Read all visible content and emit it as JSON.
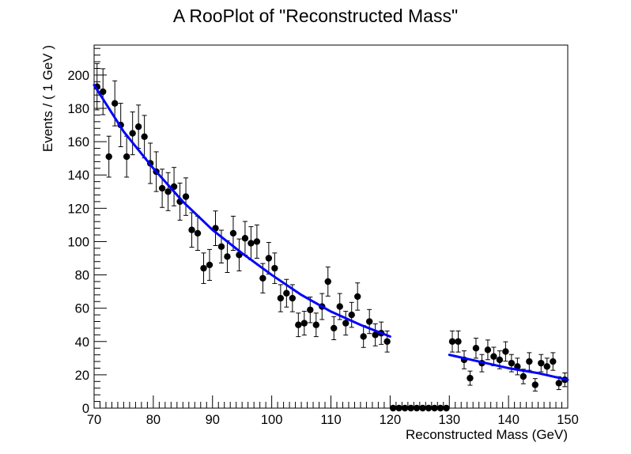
{
  "chart_data": {
    "type": "scatter",
    "title": "A RooPlot of \"Reconstructed Mass\"",
    "xlabel": "Reconstructed Mass (GeV)",
    "ylabel": "Events / ( 1 GeV )",
    "xlim": [
      70,
      150
    ],
    "ylim": [
      0,
      218
    ],
    "grid": false,
    "legend": "none",
    "x_ticks": [
      70,
      80,
      90,
      100,
      110,
      120,
      130,
      140,
      150
    ],
    "y_ticks": [
      0,
      20,
      40,
      60,
      80,
      100,
      120,
      140,
      160,
      180,
      200
    ],
    "marker_color": "#000000",
    "curve_color": "#0000ff",
    "series": [
      {
        "type": "scatter-errorbar",
        "x": [
          70.5,
          71.5,
          72.5,
          73.5,
          74.5,
          75.5,
          76.5,
          77.5,
          78.5,
          79.5,
          80.5,
          81.5,
          82.5,
          83.5,
          84.5,
          85.5,
          86.5,
          87.5,
          88.5,
          89.5,
          90.5,
          91.5,
          92.5,
          93.5,
          94.5,
          95.5,
          96.5,
          97.5,
          98.5,
          99.5,
          100.5,
          101.5,
          102.5,
          103.5,
          104.5,
          105.5,
          106.5,
          107.5,
          108.5,
          109.5,
          110.5,
          111.5,
          112.5,
          113.5,
          114.5,
          115.5,
          116.5,
          117.5,
          118.5,
          119.5,
          120.5,
          121.5,
          122.5,
          123.5,
          124.5,
          125.5,
          126.5,
          127.5,
          128.5,
          129.5,
          130.5,
          131.5,
          132.5,
          133.5,
          134.5,
          135.5,
          136.5,
          137.5,
          138.5,
          139.5,
          140.5,
          141.5,
          142.5,
          143.5,
          144.5,
          145.5,
          146.5,
          147.5,
          148.5,
          149.5
        ],
        "y": [
          193,
          190,
          151,
          183,
          170,
          151,
          165,
          169,
          163,
          147,
          142,
          132,
          130,
          133,
          124,
          127,
          107,
          105,
          84,
          86,
          108,
          97,
          91,
          105,
          92,
          102,
          99,
          100,
          78,
          90,
          84,
          66,
          69,
          66,
          50,
          51,
          59,
          50,
          61,
          76,
          48,
          61,
          51,
          56,
          67,
          43,
          52,
          44,
          45,
          40,
          0,
          0,
          0,
          0,
          0,
          0,
          0,
          0,
          0,
          0,
          40,
          40,
          29,
          18,
          36,
          27,
          35,
          31,
          29,
          34,
          27,
          25,
          19,
          28,
          14,
          27,
          25,
          28,
          15,
          17
        ]
      },
      {
        "type": "line",
        "segments": [
          {
            "x": [
              70,
              75,
              80,
              85,
              90,
              95,
              100,
              105,
              110,
              115,
              120
            ],
            "y": [
              194,
              166,
              144,
              124,
              107,
              93,
              80,
              68,
              58,
              50,
              43
            ]
          },
          {
            "x": [
              130,
              135,
              140,
              145,
              150
            ],
            "y": [
              32,
              28,
              24,
              21,
              17
            ]
          }
        ]
      }
    ]
  }
}
